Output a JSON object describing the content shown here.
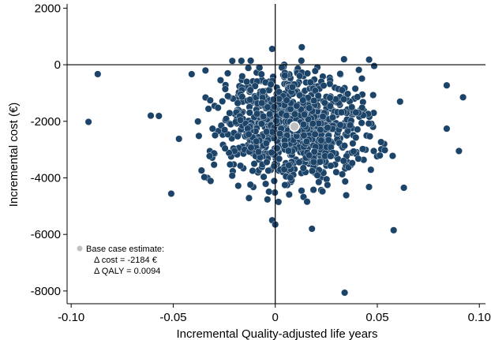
{
  "chart_data": {
    "type": "scatter",
    "title": "",
    "xlabel": "Incremental Quality-adjusted life years",
    "ylabel": "Incremental cost (€)",
    "xlim": [
      -0.102,
      0.103
    ],
    "ylim": [
      -8450,
      2150
    ],
    "x_ticks": [
      -0.1,
      -0.05,
      0,
      0.05,
      0.1
    ],
    "x_tick_labels": [
      "-0.10",
      "-0.05",
      "0",
      "0.05",
      "0.10"
    ],
    "y_ticks": [
      2000,
      0,
      -2000,
      -4000,
      -6000,
      -8000
    ],
    "y_tick_labels": [
      "2000",
      "0",
      "-2000",
      "-4000",
      "-6000",
      "-8000"
    ],
    "reference_lines": {
      "x": 0,
      "y": 0
    },
    "grid": false,
    "colors": {
      "points": "#1c4368",
      "base_case": "#c0c0c0",
      "axes": "#000000"
    },
    "base_case": {
      "x": 0.0094,
      "y": -2184
    },
    "legend": {
      "placement": "bottom-left",
      "title": "Base case estimate:",
      "line1": "Δ cost = -2184 €",
      "line2": "Δ QALY = 0.0094"
    },
    "outliers": [
      {
        "x": -0.087,
        "y": -330
      },
      {
        "x": -0.0915,
        "y": -2020
      },
      {
        "x": 0.092,
        "y": -1150
      },
      {
        "x": 0.084,
        "y": -730
      },
      {
        "x": 0.084,
        "y": -2260
      },
      {
        "x": 0.09,
        "y": -3050
      },
      {
        "x": 0.058,
        "y": -5850
      },
      {
        "x": 0.034,
        "y": -8060
      },
      {
        "x": 0.013,
        "y": 620
      },
      {
        "x": 0.046,
        "y": 180
      },
      {
        "x": -0.0015,
        "y": 560
      },
      {
        "x": -0.0015,
        "y": -5500
      },
      {
        "x": 0.0,
        "y": -5650
      },
      {
        "x": 0.018,
        "y": -5800
      },
      {
        "x": -0.061,
        "y": -1800
      },
      {
        "x": -0.057,
        "y": -1810
      },
      {
        "x": -0.051,
        "y": -4560
      },
      {
        "x": 0.063,
        "y": -4350
      }
    ],
    "cloud": {
      "n": 1000,
      "center_x": 0.0094,
      "center_y": -2184,
      "sd_x": 0.018,
      "sd_y": 1020,
      "x_range": [
        -0.05,
        0.07
      ],
      "y_range": [
        -5300,
        200
      ]
    }
  }
}
